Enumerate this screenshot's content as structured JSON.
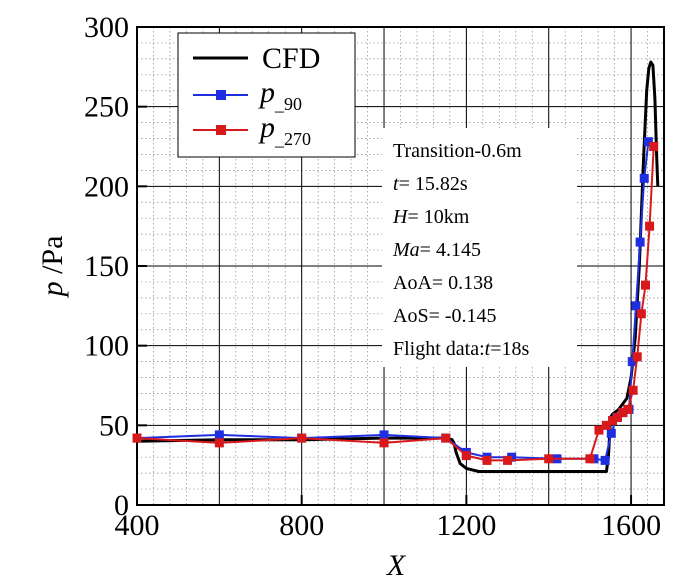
{
  "chart_data": {
    "type": "line",
    "title": "",
    "xlabel": "X",
    "ylabel_italic": "p",
    "ylabel_rest": " /Pa",
    "xlim": [
      400,
      1680
    ],
    "ylim": [
      0,
      300
    ],
    "xticks": [
      400,
      800,
      1200,
      1600
    ],
    "yticks": [
      0,
      50,
      100,
      150,
      200,
      250,
      300
    ],
    "grid": true,
    "legend_position": "top-left",
    "series": [
      {
        "name": "CFD",
        "legend_label": "CFD",
        "color": "#000000",
        "marker": "none",
        "x": [
          400,
          600,
          800,
          1000,
          1150,
          1165,
          1170,
          1175,
          1185,
          1200,
          1230,
          1300,
          1400,
          1500,
          1540,
          1545,
          1550,
          1555,
          1570,
          1590,
          1600,
          1610,
          1620,
          1630,
          1638,
          1643,
          1648,
          1653,
          1658,
          1662,
          1665
        ],
        "y": [
          40,
          41,
          41,
          42,
          42,
          41,
          39,
          33,
          26,
          23,
          21,
          21,
          21,
          21,
          21,
          30,
          55,
          57,
          60,
          67,
          80,
          105,
          150,
          215,
          260,
          274,
          278,
          276,
          255,
          220,
          200
        ]
      },
      {
        "name": "p_90",
        "legend_label": "p",
        "legend_sub": "_90",
        "color": "#1f2ee0",
        "marker": "square",
        "x": [
          400,
          600,
          800,
          1000,
          1150,
          1200,
          1250,
          1310,
          1420,
          1510,
          1537,
          1552,
          1565,
          1580,
          1595,
          1603,
          1612,
          1622,
          1632,
          1642
        ],
        "y": [
          42,
          44,
          42,
          44,
          42,
          33,
          30,
          30,
          29,
          29,
          28,
          45,
          55,
          58,
          60,
          90,
          125,
          165,
          205,
          228
        ]
      },
      {
        "name": "p_270",
        "legend_label": "p",
        "legend_sub": "_270",
        "color": "#d7191c",
        "marker": "square",
        "x": [
          400,
          600,
          800,
          1000,
          1150,
          1200,
          1250,
          1300,
          1400,
          1500,
          1522,
          1540,
          1555,
          1567,
          1580,
          1592,
          1605,
          1615,
          1625,
          1635,
          1645,
          1655
        ],
        "y": [
          42,
          39,
          42,
          39,
          42,
          31,
          28,
          28,
          29,
          29,
          47,
          50,
          53,
          55,
          58,
          60,
          72,
          93,
          120,
          138,
          175,
          225
        ]
      }
    ],
    "annotations": [
      {
        "prefix": "Transition-0.6m",
        "italic": "",
        "suffix": ""
      },
      {
        "prefix": "",
        "italic": "t",
        "suffix": "= 15.82s"
      },
      {
        "prefix": "",
        "italic": "H",
        "suffix": "= 10km"
      },
      {
        "prefix": "",
        "italic": "Ma",
        "suffix": "= 4.145"
      },
      {
        "prefix": "AoA= 0.138",
        "italic": "",
        "suffix": ""
      },
      {
        "prefix": "AoS= -0.145",
        "italic": "",
        "suffix": ""
      },
      {
        "prefix": "Flight data:",
        "italic": "t",
        "suffix": "=18s"
      }
    ]
  }
}
